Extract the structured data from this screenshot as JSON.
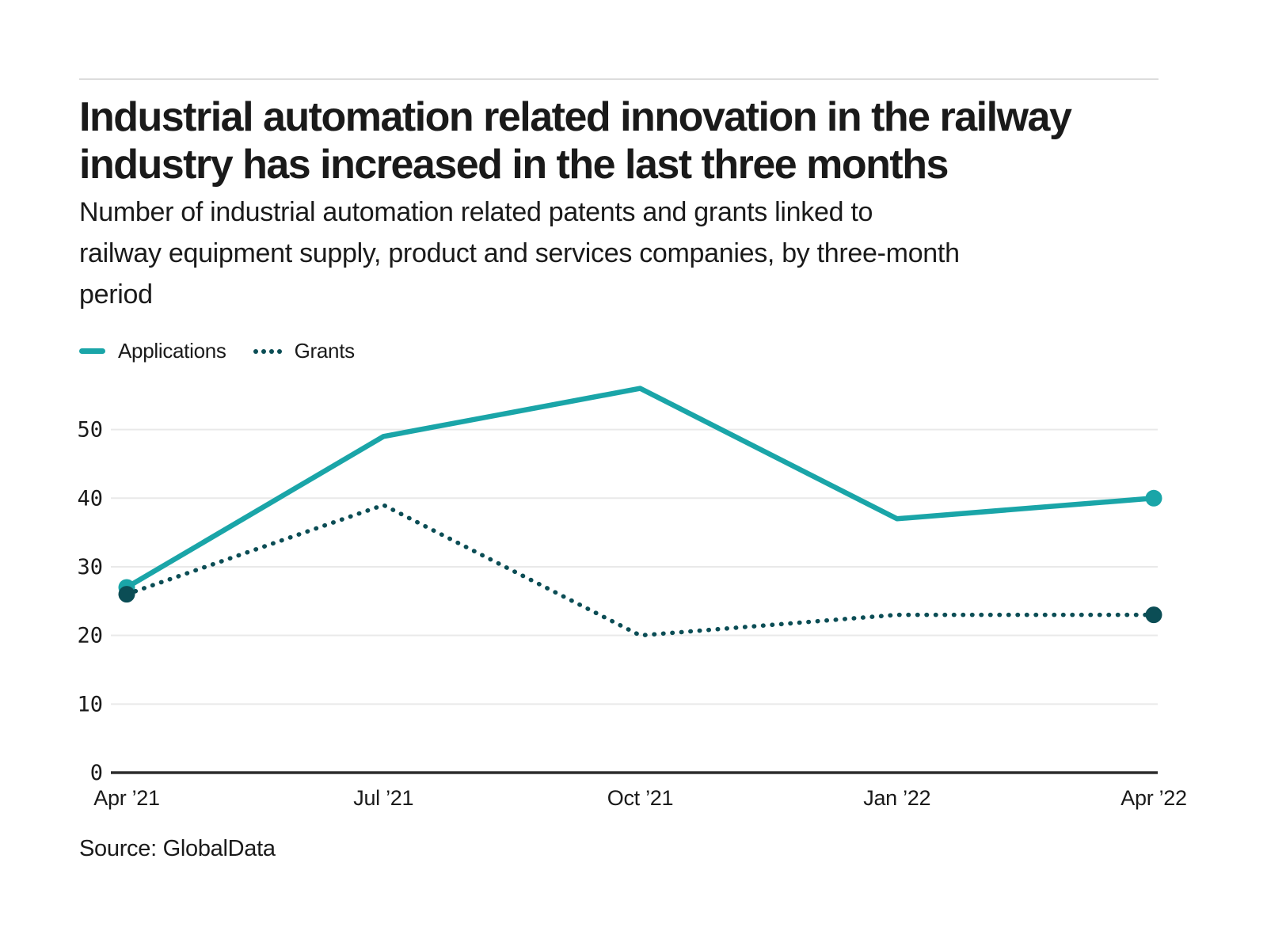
{
  "page": {
    "title_lines": [
      "Industrial automation related innovation in the railway",
      "industry has increased in the last three months"
    ],
    "subtitle_lines": [
      "Number of industrial automation related patents and grants linked to",
      "railway equipment supply, product and services companies, by three-month",
      "period"
    ],
    "source": "Source: GlobalData"
  },
  "legend": [
    {
      "label": "Applications",
      "style": "solid",
      "color": "#1AA5A8"
    },
    {
      "label": "Grants",
      "style": "dotted",
      "color": "#0B4D55"
    }
  ],
  "colors": {
    "applications": "#1AA5A8",
    "grants": "#0B4D55",
    "gridline": "#e9e9e9",
    "axis": "#2b2b2b",
    "text": "#1a1a1a"
  },
  "chart_data": {
    "type": "line",
    "title": "Industrial automation related innovation in the railway industry has increased in the last three months",
    "subtitle": "Number of industrial automation related patents and grants linked to railway equipment supply, product and services companies, by three-month period",
    "categories": [
      "Apr ’21",
      "Jul ’21",
      "Oct ’21",
      "Jan ’22",
      "Apr ’22"
    ],
    "series": [
      {
        "name": "Applications",
        "values": [
          27,
          49,
          56,
          37,
          40
        ],
        "color": "#1AA5A8",
        "line_style": "solid"
      },
      {
        "name": "Grants",
        "values": [
          26,
          39,
          20,
          23,
          23
        ],
        "color": "#0B4D55",
        "line_style": "dotted"
      }
    ],
    "xlabel": "",
    "ylabel": "",
    "yticks": [
      0,
      10,
      20,
      30,
      40,
      50
    ],
    "ylim": [
      0,
      58
    ],
    "grid": "horizontal",
    "legend_position": "top-left",
    "markers": "endpoints-only",
    "source": "Source: GlobalData"
  }
}
